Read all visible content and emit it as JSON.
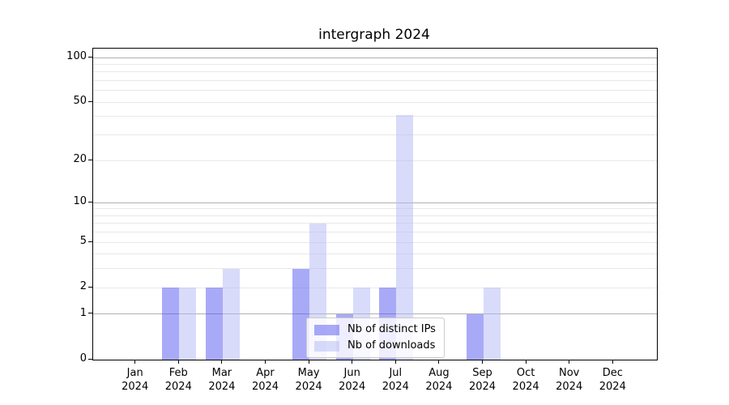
{
  "chart_data": {
    "type": "bar",
    "title": "intergraph 2024",
    "year_label": "2024",
    "categories": [
      "Jan",
      "Feb",
      "Mar",
      "Apr",
      "May",
      "Jun",
      "Jul",
      "Aug",
      "Sep",
      "Oct",
      "Nov",
      "Dec"
    ],
    "series": [
      {
        "name": "Nb of distinct IPs",
        "color_hex": "#a9aaf7",
        "fill": "rgba(83,85,239,0.5)",
        "values": [
          0,
          2,
          2,
          0,
          3,
          1,
          2,
          0,
          1,
          0,
          0,
          0
        ]
      },
      {
        "name": "Nb of downloads",
        "color_hex": "#d9dbfa",
        "fill": "rgba(180,184,245,0.5)",
        "values": [
          0,
          2,
          3,
          0,
          7,
          2,
          41,
          0,
          2,
          0,
          0,
          0
        ]
      }
    ],
    "y_axis": {
      "scale": "log1p",
      "tick_labels": [
        0,
        1,
        2,
        5,
        10,
        20,
        50,
        100
      ],
      "major_gridlines": [
        1,
        10,
        100
      ],
      "minor_gridlines": [
        2,
        3,
        4,
        5,
        6,
        7,
        8,
        9,
        20,
        30,
        40,
        50,
        60,
        70,
        80,
        90
      ],
      "ylim": [
        0,
        115
      ]
    },
    "legend": {
      "position": "lower-center"
    },
    "grid": true,
    "colors": {
      "grid_major": "#b0b0b0",
      "grid_minor": "#e8e8e8",
      "axis": "#000000",
      "background": "#ffffff"
    }
  }
}
